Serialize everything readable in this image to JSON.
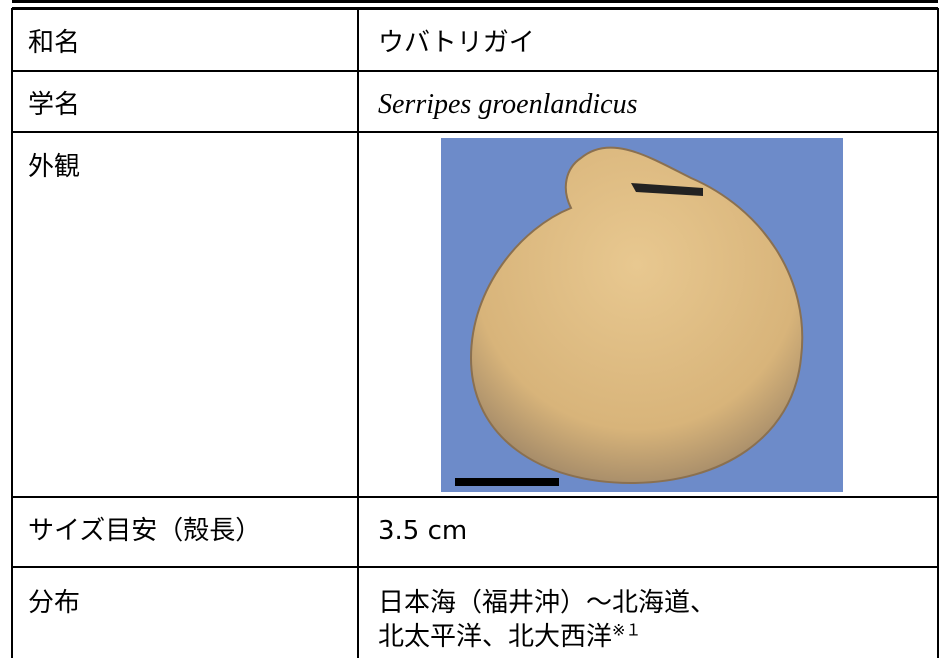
{
  "table": {
    "rows": [
      {
        "label": "和名",
        "value": "ウバトリガイ"
      },
      {
        "label": "学名",
        "value": "Serripes groenlandicus"
      },
      {
        "label": "外観"
      },
      {
        "label": "サイズ目安（殻長）",
        "value": "3.5 cm"
      },
      {
        "label": "分布",
        "lines": [
          "日本海（福井沖）～北海道、",
          "北太平洋、北大西洋"
        ],
        "note": "※１"
      }
    ]
  }
}
